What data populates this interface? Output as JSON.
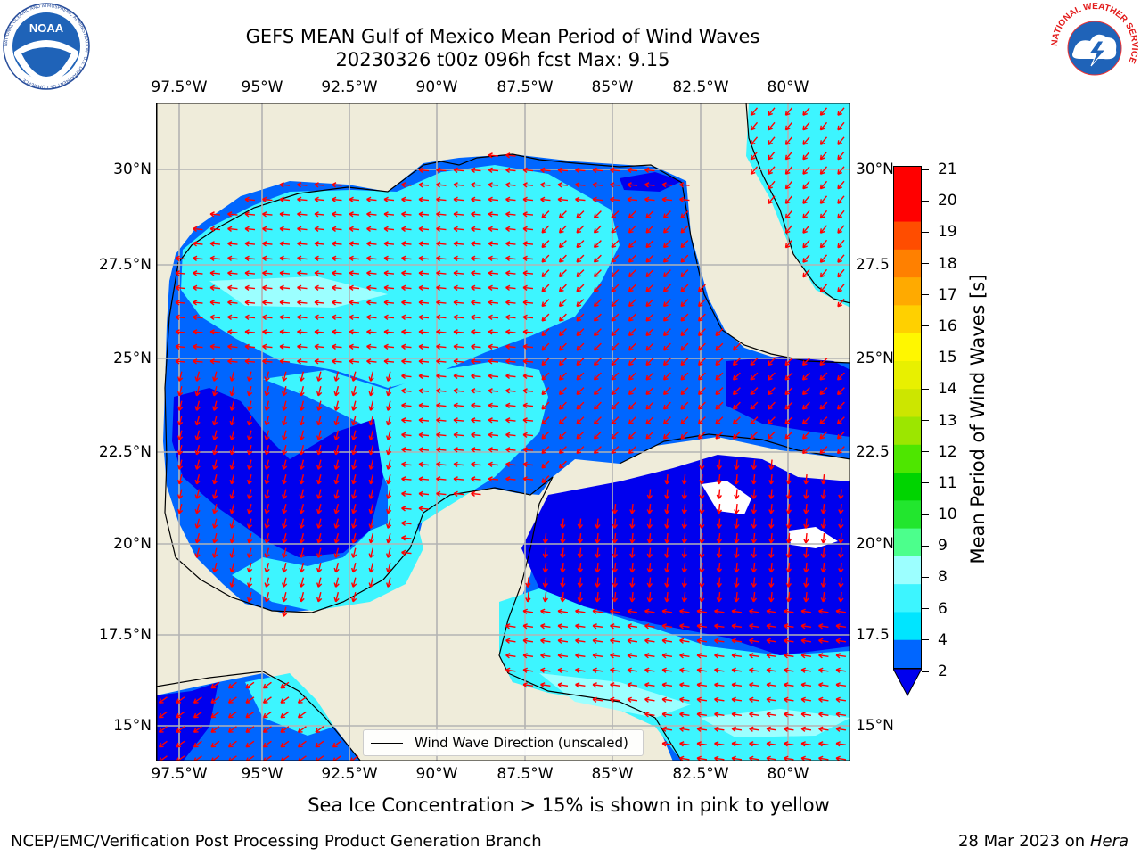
{
  "title_line1": "GEFS MEAN Gulf of Mexico Mean Period of Wind Waves",
  "title_line2": "20230326 t00z 096h fcst   Max: 9.15",
  "lon_ticks": [
    "97.5°W",
    "95°W",
    "92.5°W",
    "90°W",
    "87.5°W",
    "85°W",
    "82.5°W",
    "80°W"
  ],
  "lat_ticks_left": [
    "30°N",
    "27.5°N",
    "25°N",
    "22.5°N",
    "20°N",
    "17.5°N",
    "15°N"
  ],
  "lat_ticks_right": [
    "30°N",
    "27.5",
    "25°N",
    "22.5",
    "20°N",
    "17.5",
    "15°N"
  ],
  "legend": {
    "label": "Wind Wave Direction (unscaled)"
  },
  "colorbar": {
    "label": "Mean Period of Wind Waves [s]",
    "ticks": [
      "2",
      "4",
      "6",
      "8",
      "9",
      "10",
      "11",
      "12",
      "13",
      "14",
      "15",
      "16",
      "17",
      "18",
      "19",
      "20",
      "21"
    ],
    "colors": [
      "#0066ff",
      "#00e5ff",
      "#3df5ff",
      "#9cffff",
      "#4cff8c",
      "#22e62e",
      "#00d400",
      "#4ee600",
      "#9ce600",
      "#cce600",
      "#e8f000",
      "#fff700",
      "#ffd000",
      "#ffaa00",
      "#ff8000",
      "#ff4d00",
      "#ff0000",
      "#ff0000"
    ],
    "under_color": "#0000ee"
  },
  "colors": {
    "land": "#efecda",
    "grid": "#b3b3b3",
    "arrow": "#ff0000",
    "coast": "#000000"
  },
  "note": "Sea Ice Concentration > 15% is shown in pink to yellow",
  "footer_left": "NCEP/EMC/Verification Post Processing Product Generation Branch",
  "footer_date": "28 Mar 2023 on",
  "footer_host": "Hera",
  "logos": {
    "left_ring_text": "NATIONAL OCEANIC AND ATMOSPHERIC ADMINISTRATION · U.S. DEPARTMENT OF COMMERCE",
    "left_center": "NOAA",
    "right_ring_text": "NATIONAL WEATHER SERVICE"
  }
}
